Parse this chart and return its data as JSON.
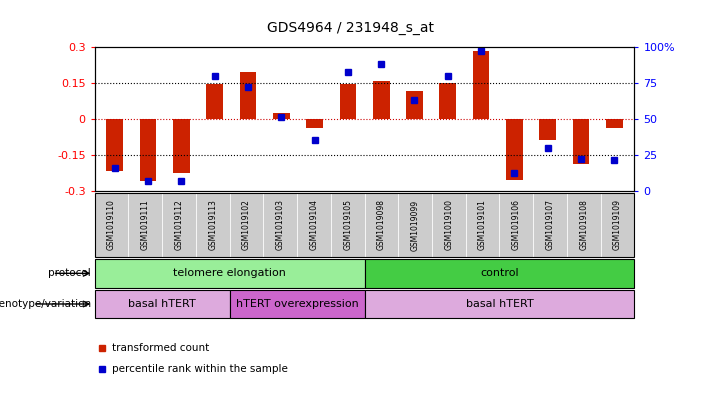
{
  "title": "GDS4964 / 231948_s_at",
  "samples": [
    "GSM1019110",
    "GSM1019111",
    "GSM1019112",
    "GSM1019113",
    "GSM1019102",
    "GSM1019103",
    "GSM1019104",
    "GSM1019105",
    "GSM1019098",
    "GSM1019099",
    "GSM1019100",
    "GSM1019101",
    "GSM1019106",
    "GSM1019107",
    "GSM1019108",
    "GSM1019109"
  ],
  "bar_values": [
    -0.22,
    -0.26,
    -0.225,
    0.145,
    0.195,
    0.025,
    -0.04,
    0.145,
    0.16,
    0.115,
    0.15,
    0.285,
    -0.255,
    -0.09,
    -0.19,
    -0.04
  ],
  "dot_values": [
    0.16,
    0.07,
    0.07,
    0.8,
    0.72,
    0.51,
    0.35,
    0.83,
    0.88,
    0.63,
    0.8,
    0.97,
    0.12,
    0.3,
    0.22,
    0.21
  ],
  "ylim": [
    -0.3,
    0.3
  ],
  "yticks": [
    -0.3,
    -0.15,
    0.0,
    0.15,
    0.3
  ],
  "ytick_labels": [
    "-0.3",
    "-0.15",
    "0",
    "0.15",
    "0.3"
  ],
  "right_yticks": [
    0,
    25,
    50,
    75,
    100
  ],
  "right_ytick_labels": [
    "0",
    "25",
    "50",
    "75",
    "100%"
  ],
  "bar_color": "#cc2200",
  "dot_color": "#0000cc",
  "bg_color": "#ffffff",
  "protocol_label": "protocol",
  "genotype_label": "genotype/variation",
  "protocol_groups": [
    {
      "label": "telomere elongation",
      "start": 0,
      "end": 8,
      "color": "#99ee99"
    },
    {
      "label": "control",
      "start": 8,
      "end": 16,
      "color": "#44cc44"
    }
  ],
  "genotype_groups": [
    {
      "label": "basal hTERT",
      "start": 0,
      "end": 4,
      "color": "#ddaadd"
    },
    {
      "label": "hTERT overexpression",
      "start": 4,
      "end": 8,
      "color": "#cc66cc"
    },
    {
      "label": "basal hTERT",
      "start": 8,
      "end": 16,
      "color": "#ddaadd"
    }
  ],
  "legend_items": [
    {
      "label": "transformed count",
      "color": "#cc2200"
    },
    {
      "label": "percentile rank within the sample",
      "color": "#0000cc"
    }
  ],
  "tick_bg": "#cccccc"
}
